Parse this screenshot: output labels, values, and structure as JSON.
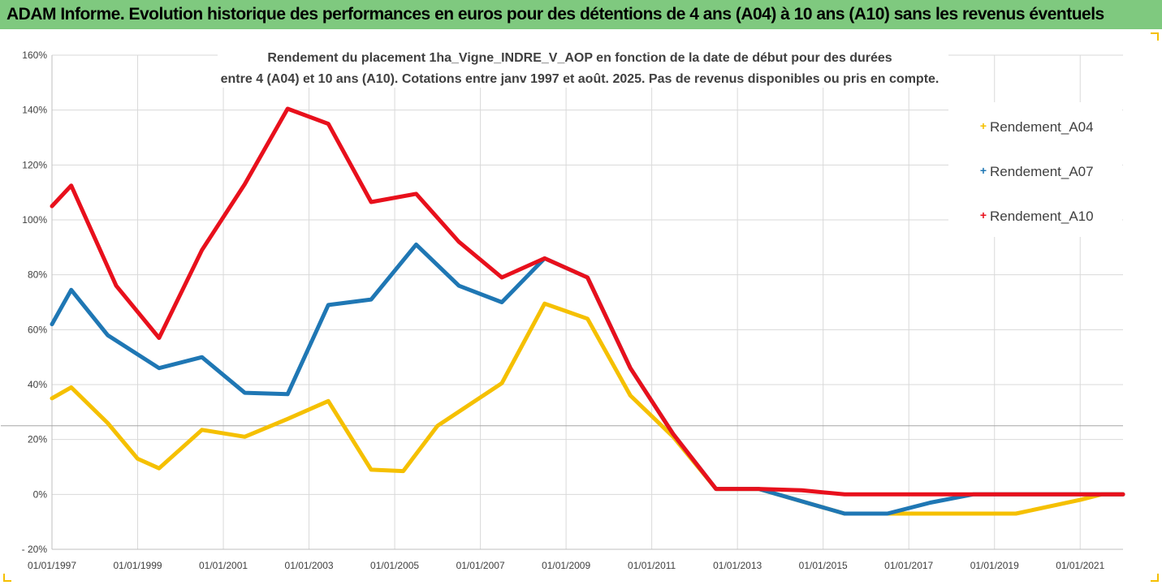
{
  "header": {
    "title": "ADAM Informe. Evolution historique des performances en euros pour des détentions de 4 ans (A04) à 10 ans (A10) sans les revenus éventuels"
  },
  "colors": {
    "banner": "#7fc97f",
    "A04": "#f5c000",
    "A07": "#1f77b4",
    "A10": "#e8101c",
    "grid": "#d9d9d9"
  },
  "chart_data": {
    "type": "line",
    "title_lines": [
      "Rendement du placement 1ha_Vigne_INDRE_V_AOP en fonction de la date de début pour des durées",
      "entre 4 (A04) et 10 ans (A10). Cotations entre janv 1997 et août. 2025. Pas de revenus disponibles ou pris en compte."
    ],
    "xlabel": "",
    "ylabel": "",
    "x_unit": "year",
    "xlim": [
      1997.0,
      2022.0
    ],
    "ylim": [
      -20,
      160
    ],
    "y_ticks": [
      160,
      140,
      120,
      100,
      80,
      60,
      40,
      20,
      0,
      -20
    ],
    "y_tick_labels": [
      "160%",
      "140%",
      "120%",
      "100%",
      "80%",
      "60%",
      "40%",
      "20%",
      "0%",
      "- 20%"
    ],
    "x_ticks": [
      1997,
      1999,
      2001,
      2003,
      2005,
      2007,
      2009,
      2011,
      2013,
      2015,
      2017,
      2019,
      2021
    ],
    "x_tick_labels": [
      "01/01/1997",
      "01/01/1999",
      "01/01/2001",
      "01/01/2003",
      "01/01/2005",
      "01/01/2007",
      "01/01/2009",
      "01/01/2011",
      "01/01/2013",
      "01/01/2015",
      "01/01/2017",
      "01/01/2019",
      "01/01/2021"
    ],
    "grid": true,
    "legend_position": "top-right",
    "series": [
      {
        "name": "Rendement_A04",
        "color": "#f5c000",
        "points": [
          [
            1997.0,
            35
          ],
          [
            1997.45,
            39
          ],
          [
            1998.3,
            26
          ],
          [
            1999.0,
            13
          ],
          [
            1999.5,
            9.5
          ],
          [
            2000.5,
            23.5
          ],
          [
            2001.5,
            21
          ],
          [
            2002.5,
            27.5
          ],
          [
            2003.45,
            34
          ],
          [
            2004.45,
            9
          ],
          [
            2005.2,
            8.5
          ],
          [
            2006.0,
            25
          ],
          [
            2007.5,
            40.5
          ],
          [
            2008.5,
            69.5
          ],
          [
            2009.5,
            64
          ],
          [
            2010.5,
            36
          ],
          [
            2011.5,
            21
          ],
          [
            2012.5,
            2
          ],
          [
            2013.5,
            2
          ],
          [
            2015.5,
            -7
          ],
          [
            2016.5,
            -7
          ],
          [
            2018.5,
            -7
          ],
          [
            2019.5,
            -7
          ],
          [
            2021.0,
            -2
          ],
          [
            2021.5,
            0
          ],
          [
            2022.0,
            0
          ]
        ]
      },
      {
        "name": "Rendement_A07",
        "color": "#1f77b4",
        "points": [
          [
            1997.0,
            62
          ],
          [
            1997.45,
            74.5
          ],
          [
            1998.3,
            58
          ],
          [
            1999.5,
            46
          ],
          [
            2000.5,
            50
          ],
          [
            2001.5,
            37
          ],
          [
            2002.5,
            36.5
          ],
          [
            2003.45,
            69
          ],
          [
            2004.45,
            71
          ],
          [
            2005.5,
            91
          ],
          [
            2006.5,
            76
          ],
          [
            2007.5,
            70
          ],
          [
            2008.5,
            86
          ],
          [
            2009.5,
            79
          ],
          [
            2010.5,
            46
          ],
          [
            2011.5,
            22
          ],
          [
            2012.5,
            2
          ],
          [
            2013.5,
            2
          ],
          [
            2015.5,
            -7
          ],
          [
            2016.5,
            -7
          ],
          [
            2017.5,
            -3
          ],
          [
            2018.5,
            0
          ],
          [
            2019.5,
            0
          ],
          [
            2021.0,
            0
          ],
          [
            2022.0,
            0
          ]
        ]
      },
      {
        "name": "Rendement_A10",
        "color": "#e8101c",
        "points": [
          [
            1997.0,
            105
          ],
          [
            1997.45,
            112.5
          ],
          [
            1998.5,
            76
          ],
          [
            1999.5,
            57
          ],
          [
            2000.5,
            89
          ],
          [
            2001.5,
            113
          ],
          [
            2002.5,
            140.5
          ],
          [
            2003.45,
            135
          ],
          [
            2004.45,
            106.5
          ],
          [
            2005.5,
            109.5
          ],
          [
            2006.5,
            92
          ],
          [
            2007.5,
            79
          ],
          [
            2008.5,
            86
          ],
          [
            2009.5,
            79
          ],
          [
            2010.5,
            46
          ],
          [
            2011.5,
            22
          ],
          [
            2012.5,
            2
          ],
          [
            2013.5,
            2
          ],
          [
            2014.5,
            1.5
          ],
          [
            2015.5,
            0
          ],
          [
            2017.0,
            0
          ],
          [
            2019.0,
            0
          ],
          [
            2021.0,
            0
          ],
          [
            2022.0,
            0
          ]
        ]
      }
    ]
  }
}
